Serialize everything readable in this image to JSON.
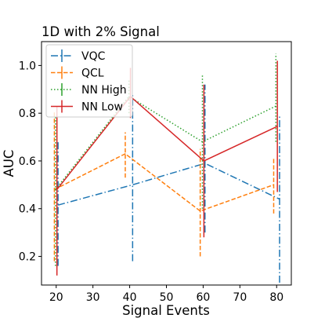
{
  "chart_data": {
    "type": "line",
    "title": "1D with 2% Signal",
    "xlabel": "Signal Events",
    "ylabel": "AUC",
    "xlim": [
      16,
      84
    ],
    "ylim": [
      0.08,
      1.1
    ],
    "xticks": [
      20,
      30,
      40,
      50,
      60,
      70,
      80
    ],
    "yticks": [
      0.2,
      0.4,
      0.6,
      0.8,
      1.0
    ],
    "xtick_labels": [
      "20",
      "30",
      "40",
      "50",
      "60",
      "70",
      "80"
    ],
    "ytick_labels": [
      "0.2",
      "0.4",
      "0.6",
      "0.8",
      "1.0"
    ],
    "grid": false,
    "legend_position": "top-left",
    "series": [
      {
        "name": "VQC",
        "color": "#1f77b4",
        "dash": "dashdot",
        "x": [
          20.5,
          40.8,
          60.5,
          80.8
        ],
        "y": [
          0.415,
          0.5,
          0.59,
          0.44
        ],
        "err_low": [
          0.16,
          0.18,
          0.3,
          0.09
        ],
        "err_high": [
          0.68,
          0.88,
          0.92,
          0.79
        ]
      },
      {
        "name": "QCL",
        "color": "#ff7f0e",
        "dash": "dashed",
        "x": [
          19.5,
          38.8,
          59.2,
          79.2
        ],
        "y": [
          0.48,
          0.63,
          0.39,
          0.5
        ],
        "err_low": [
          0.18,
          0.53,
          0.2,
          0.38
        ],
        "err_high": [
          0.81,
          0.72,
          0.65,
          0.61
        ]
      },
      {
        "name": "NN High",
        "color": "#2ca02c",
        "dash": "dotted",
        "x": [
          19.8,
          39.8,
          59.8,
          79.8
        ],
        "y": [
          0.48,
          0.87,
          0.68,
          0.83
        ],
        "err_low": [
          0.16,
          0.8,
          0.4,
          0.68
        ],
        "err_high": [
          0.79,
          0.94,
          0.96,
          1.05
        ]
      },
      {
        "name": "NN Low",
        "color": "#d62728",
        "dash": "solid",
        "x": [
          20.2,
          40.2,
          60.2,
          80.2
        ],
        "y": [
          0.48,
          0.87,
          0.6,
          0.745
        ],
        "err_low": [
          0.12,
          0.78,
          0.28,
          0.47
        ],
        "err_high": [
          0.83,
          0.99,
          0.92,
          1.02
        ]
      }
    ]
  }
}
